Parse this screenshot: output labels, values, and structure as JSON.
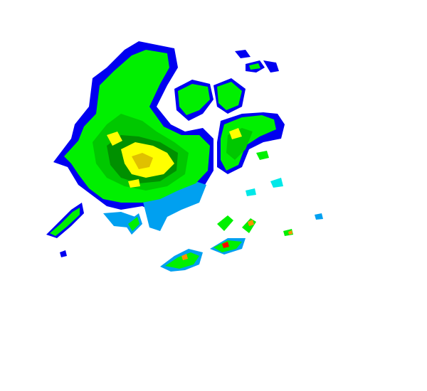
{
  "map": {
    "type": "radar-reflectivity",
    "background": "#ffffff",
    "palette": {
      "dark_blue": "#0000f0",
      "light_blue": "#00a0f0",
      "cyan": "#00e8e8",
      "bright_green": "#00f000",
      "green": "#00c800",
      "dark_green": "#009000",
      "yellow": "#ffff00",
      "gold": "#e0c000",
      "orange": "#ff9000",
      "red": "#ff0000"
    }
  }
}
